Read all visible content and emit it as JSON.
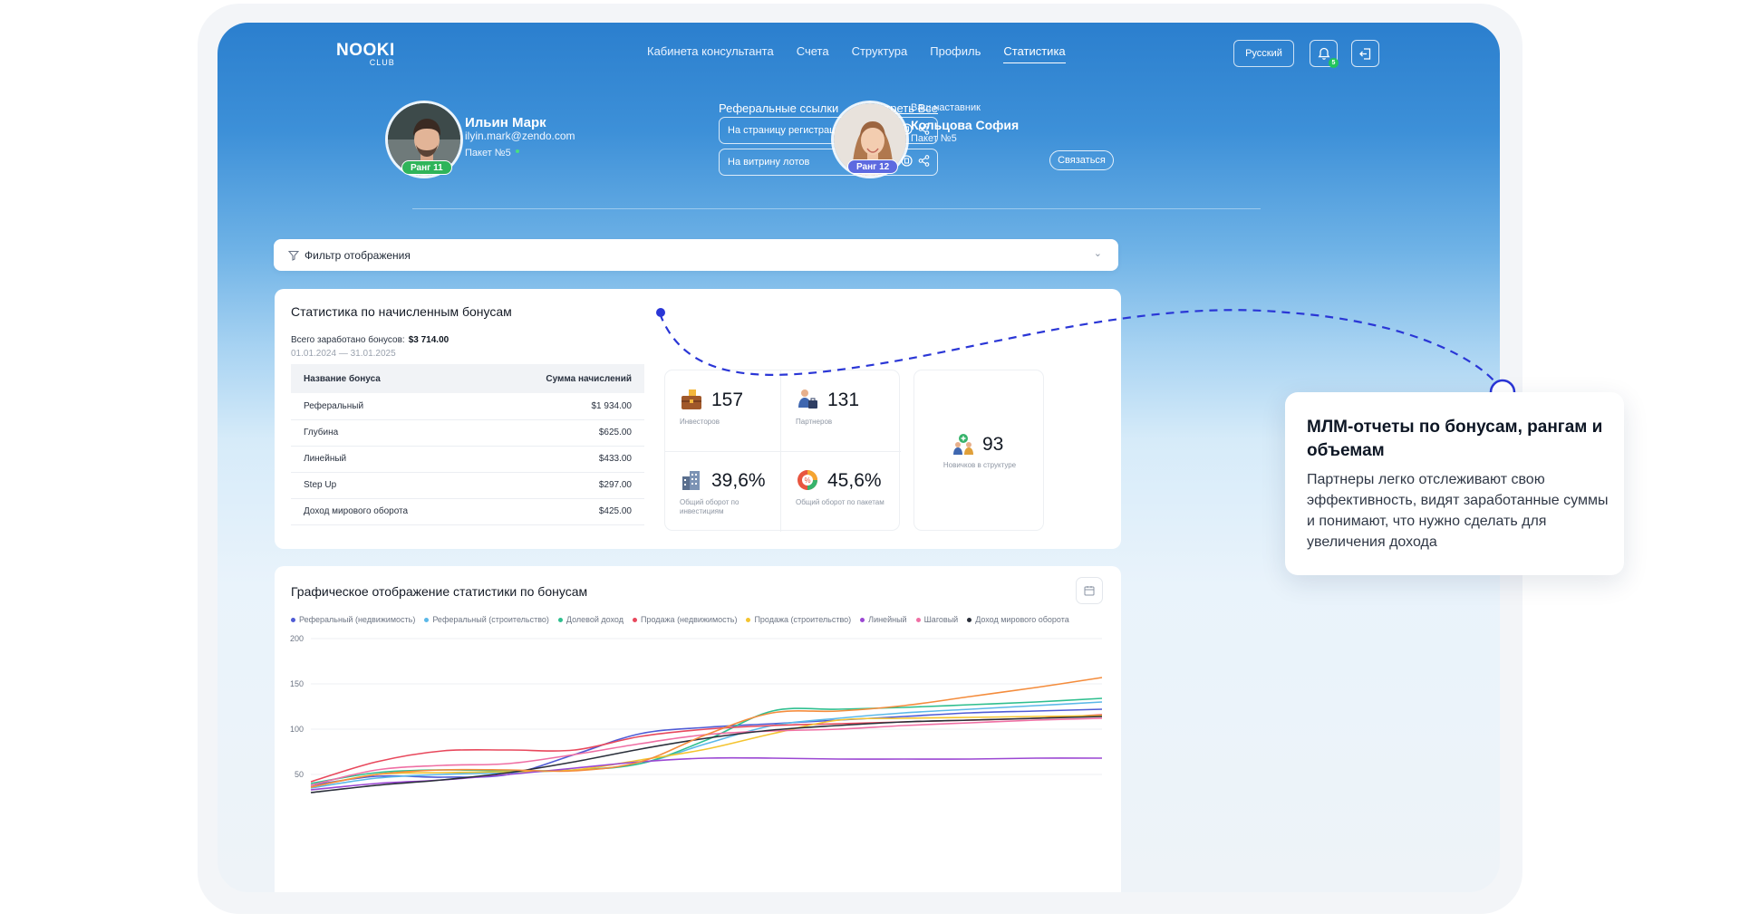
{
  "logo": {
    "main": "NOOKI",
    "sub": "CLUB"
  },
  "nav": {
    "items": [
      "Кабинета консультанта",
      "Счета",
      "Структура",
      "Профиль",
      "Статистика"
    ],
    "active": "Статистика"
  },
  "header": {
    "language": "Русский",
    "notifications_count": "5"
  },
  "user": {
    "name": "Ильин Марк",
    "email": "ilyin.mark@zendo.com",
    "package": "Пакет №5",
    "rank": "Ранг 11"
  },
  "referrals": {
    "title": "Реферальные ссылки",
    "see_all": "Смотреть Все",
    "links": [
      "На страницу регистрации",
      "На витрину лотов"
    ]
  },
  "mentor": {
    "caption": "Ваш наставник",
    "name": "Кольцова София",
    "package": "Пакет №5",
    "rank": "Ранг 12",
    "contact_label": "Связаться"
  },
  "filter": {
    "label": "Фильтр отображения"
  },
  "bonus_stats": {
    "title": "Статистика по начисленным бонусам",
    "total_label": "Всего заработано бонусов:",
    "total_value": "$3 714.00",
    "period": "01.01.2024 — 31.01.2025",
    "columns": [
      "Название бонуса",
      "Сумма начислений"
    ],
    "rows": [
      [
        "Реферальный",
        "$1 934.00"
      ],
      [
        "Глубина",
        "$625.00"
      ],
      [
        "Линейный",
        "$433.00"
      ],
      [
        "Step Up",
        "$297.00"
      ],
      [
        "Доход мирового оборота",
        "$425.00"
      ]
    ]
  },
  "kpis": {
    "investors": {
      "value": "157",
      "label": "Инвесторов"
    },
    "partners": {
      "value": "131",
      "label": "Партнеров"
    },
    "turnover_invest": {
      "value": "39,6%",
      "label": "Общий оборот по инвестициям"
    },
    "turnover_packages": {
      "value": "45,6%",
      "label": "Общий оборот по пакетам"
    },
    "newcomers": {
      "value": "93",
      "label": "Новичков в структуре"
    }
  },
  "graph": {
    "title": "Графическое отображение статистики по бонусам"
  },
  "chart_data": {
    "type": "line",
    "title": "Графическое отображение статистики по бонусам",
    "xlabel": "",
    "ylabel": "",
    "ylim": [
      0,
      200
    ],
    "yticks": [
      50,
      100,
      150,
      200
    ],
    "grid": true,
    "legend_position": "top",
    "x": [
      0,
      1,
      2,
      3,
      4,
      5,
      6,
      7,
      8,
      9,
      10,
      11,
      12
    ],
    "series": [
      {
        "name": "Реферальный (недвижимость)",
        "color": "#4f5bd5",
        "values": [
          38,
          48,
          47,
          50,
          72,
          95,
          102,
          106,
          110,
          114,
          118,
          120,
          122
        ]
      },
      {
        "name": "Реферальный (строительство)",
        "color": "#5bb8e8",
        "values": [
          35,
          46,
          50,
          52,
          55,
          62,
          84,
          104,
          112,
          118,
          122,
          126,
          130
        ]
      },
      {
        "name": "Долевой доход",
        "color": "#2fbf8f",
        "values": [
          40,
          52,
          55,
          54,
          55,
          62,
          88,
          120,
          122,
          124,
          127,
          130,
          134
        ]
      },
      {
        "name": "Продажа (недвижимость)",
        "color": "#e8485c",
        "values": [
          42,
          64,
          76,
          77,
          77,
          92,
          100,
          104,
          106,
          108,
          110,
          112,
          116
        ]
      },
      {
        "name": "Продажа (строительство)",
        "color": "#f4c430",
        "values": [
          36,
          50,
          52,
          53,
          55,
          66,
          78,
          95,
          110,
          112,
          113,
          114,
          115
        ]
      },
      {
        "name": "Линейный",
        "color": "#9b47d3",
        "values": [
          33,
          40,
          44,
          50,
          57,
          64,
          68,
          68,
          67,
          67,
          67,
          68,
          68
        ]
      },
      {
        "name": "Шаговый",
        "color": "#ef6fa4",
        "values": [
          38,
          55,
          60,
          62,
          72,
          84,
          94,
          98,
          100,
          104,
          107,
          110,
          112
        ]
      },
      {
        "name": "Доход мирового оборота",
        "color": "#2a2f3a",
        "values": [
          30,
          38,
          44,
          52,
          64,
          78,
          90,
          99,
          104,
          108,
          110,
          112,
          114
        ]
      },
      {
        "name": "",
        "color": "#f48c3c",
        "values": [
          36,
          50,
          55,
          55,
          54,
          64,
          94,
          118,
          120,
          126,
          136,
          146,
          157
        ]
      }
    ]
  },
  "callout": {
    "title": "МЛМ-отчеты по бонусам, рангам и объемам",
    "text": "Партнеры легко отслеживают свою эффективность, видят заработанные суммы и понимают, что нужно сделать для увеличения дохода"
  }
}
